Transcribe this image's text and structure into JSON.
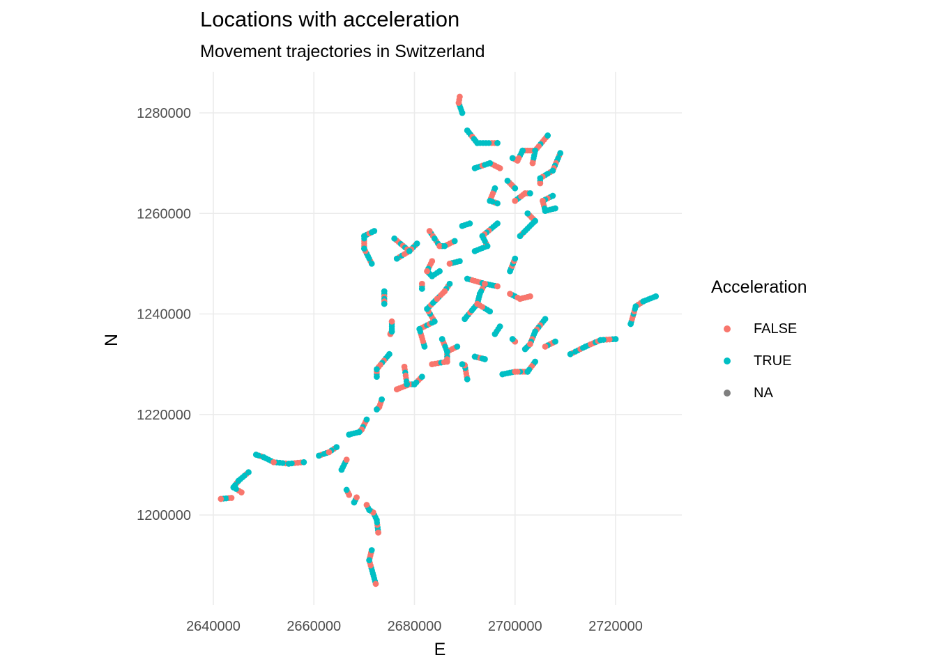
{
  "chart_data": {
    "type": "scatter",
    "title": "Locations with acceleration",
    "subtitle": "Movement trajectories in Switzerland",
    "xlabel": "E",
    "ylabel": "N",
    "xlim": [
      2638500,
      2732500
    ],
    "ylim": [
      1184500,
      1287000
    ],
    "x_ticks": [
      2640000,
      2660000,
      2680000,
      2700000,
      2720000
    ],
    "x_tick_labels": [
      "2640000",
      "2660000",
      "2680000",
      "2700000",
      "2720000"
    ],
    "y_ticks": [
      1200000,
      1220000,
      1240000,
      1260000,
      1280000
    ],
    "y_tick_labels": [
      "1200000",
      "1220000",
      "1240000",
      "1260000",
      "1280000"
    ],
    "grid": true,
    "legend": {
      "title": "Acceleration",
      "position": "right",
      "entries": [
        {
          "label": "FALSE",
          "color": "#f8766d"
        },
        {
          "label": "TRUE",
          "color": "#00bfc4"
        },
        {
          "label": "NA",
          "color": "#7f7f7f"
        }
      ]
    },
    "series": [
      {
        "name": "FALSE",
        "color": "#f8766d",
        "points": [
          [
            2641500,
            1203200
          ],
          [
            2643600,
            1203400
          ],
          [
            2645600,
            1204500
          ],
          [
            2652000,
            1210500
          ],
          [
            2663000,
            1212500
          ],
          [
            2666500,
            1211000
          ],
          [
            2667000,
            1204000
          ],
          [
            2668500,
            1203500
          ],
          [
            2670500,
            1202000
          ],
          [
            2671800,
            1200500
          ],
          [
            2672800,
            1196500
          ],
          [
            2672300,
            1186300
          ],
          [
            2669500,
            1217000
          ],
          [
            2673000,
            1221500
          ],
          [
            2676500,
            1225000
          ],
          [
            2678500,
            1225800
          ],
          [
            2675500,
            1238500
          ],
          [
            2675200,
            1236000
          ],
          [
            2683500,
            1250500
          ],
          [
            2682500,
            1248500
          ],
          [
            2681500,
            1246000
          ],
          [
            2684500,
            1243000
          ],
          [
            2686000,
            1244500
          ],
          [
            2685000,
            1253500
          ],
          [
            2683000,
            1256500
          ],
          [
            2687000,
            1250000
          ],
          [
            2689000,
            1283200
          ],
          [
            2688800,
            1282000
          ],
          [
            2692500,
            1242000
          ],
          [
            2694000,
            1246000
          ],
          [
            2696500,
            1245500
          ],
          [
            2699000,
            1244000
          ],
          [
            2701000,
            1243000
          ],
          [
            2703000,
            1243500
          ],
          [
            2700000,
            1234500
          ],
          [
            2703000,
            1234000
          ],
          [
            2706000,
            1233500
          ],
          [
            2697000,
            1269000
          ],
          [
            2700500,
            1270500
          ],
          [
            2702000,
            1264000
          ],
          [
            2705500,
            1262500
          ],
          [
            2703500,
            1270000
          ],
          [
            2705000,
            1266000
          ],
          [
            2700000,
            1262500
          ],
          [
            2690000,
            1229800
          ],
          [
            2683500,
            1230000
          ],
          [
            2686500,
            1230500
          ],
          [
            2678000,
            1229500
          ],
          [
            2700000,
            1228500
          ]
        ]
      },
      {
        "name": "TRUE",
        "color": "#00bfc4",
        "points": [
          [
            2644000,
            1205500
          ],
          [
            2645000,
            1206800
          ],
          [
            2647000,
            1208500
          ],
          [
            2648500,
            1212000
          ],
          [
            2650000,
            1211500
          ],
          [
            2655000,
            1210200
          ],
          [
            2658000,
            1210500
          ],
          [
            2661000,
            1211800
          ],
          [
            2664500,
            1213500
          ],
          [
            2667000,
            1216000
          ],
          [
            2669000,
            1216500
          ],
          [
            2670500,
            1219000
          ],
          [
            2672500,
            1221000
          ],
          [
            2673500,
            1223000
          ],
          [
            2672500,
            1229000
          ],
          [
            2672500,
            1227500
          ],
          [
            2675000,
            1232000
          ],
          [
            2675500,
            1236500
          ],
          [
            2674000,
            1242000
          ],
          [
            2674000,
            1244500
          ],
          [
            2671500,
            1250000
          ],
          [
            2670000,
            1253000
          ],
          [
            2672000,
            1256500
          ],
          [
            2670000,
            1255500
          ],
          [
            2676000,
            1255000
          ],
          [
            2676500,
            1251000
          ],
          [
            2679000,
            1252500
          ],
          [
            2665500,
            1209000
          ],
          [
            2666500,
            1205000
          ],
          [
            2668000,
            1202500
          ],
          [
            2671000,
            1201000
          ],
          [
            2672500,
            1199000
          ],
          [
            2671500,
            1193000
          ],
          [
            2671000,
            1191000
          ],
          [
            2678500,
            1226000
          ],
          [
            2680000,
            1226000
          ],
          [
            2681500,
            1227500
          ],
          [
            2681000,
            1237000
          ],
          [
            2682000,
            1233500
          ],
          [
            2682500,
            1241000
          ],
          [
            2684000,
            1238500
          ],
          [
            2685500,
            1235000
          ],
          [
            2686500,
            1232500
          ],
          [
            2688500,
            1233500
          ],
          [
            2689500,
            1230000
          ],
          [
            2690500,
            1227000
          ],
          [
            2685000,
            1248500
          ],
          [
            2687000,
            1246000
          ],
          [
            2689000,
            1250500
          ],
          [
            2690500,
            1247000
          ],
          [
            2692000,
            1252500
          ],
          [
            2693500,
            1255500
          ],
          [
            2689500,
            1257500
          ],
          [
            2691000,
            1258000
          ],
          [
            2688000,
            1254500
          ],
          [
            2693000,
            1244000
          ],
          [
            2695000,
            1240500
          ],
          [
            2697000,
            1237500
          ],
          [
            2699500,
            1235000
          ],
          [
            2702000,
            1233000
          ],
          [
            2704000,
            1236500
          ],
          [
            2706000,
            1239000
          ],
          [
            2708000,
            1234500
          ],
          [
            2711000,
            1232000
          ],
          [
            2714000,
            1233500
          ],
          [
            2717000,
            1234800
          ],
          [
            2720000,
            1235000
          ],
          [
            2723000,
            1238000
          ],
          [
            2724000,
            1241500
          ],
          [
            2725500,
            1242500
          ],
          [
            2728000,
            1243500
          ],
          [
            2697500,
            1228000
          ],
          [
            2702500,
            1228500
          ],
          [
            2704000,
            1230500
          ],
          [
            2696000,
            1236000
          ],
          [
            2694000,
            1231000
          ],
          [
            2692000,
            1231500
          ],
          [
            2690000,
            1239000
          ],
          [
            2694500,
            1253500
          ],
          [
            2696500,
            1258000
          ],
          [
            2695000,
            1262500
          ],
          [
            2696000,
            1265000
          ],
          [
            2698500,
            1266500
          ],
          [
            2700000,
            1265000
          ],
          [
            2702500,
            1260000
          ],
          [
            2704000,
            1258500
          ],
          [
            2706000,
            1260500
          ],
          [
            2707500,
            1263500
          ],
          [
            2708000,
            1261000
          ],
          [
            2701000,
            1255500
          ],
          [
            2700000,
            1251000
          ],
          [
            2699000,
            1248500
          ],
          [
            2704000,
            1272500
          ],
          [
            2706500,
            1275500
          ],
          [
            2709000,
            1272000
          ],
          [
            2707500,
            1268500
          ],
          [
            2705000,
            1267000
          ],
          [
            2696500,
            1262000
          ],
          [
            2695000,
            1270000
          ],
          [
            2692000,
            1269000
          ],
          [
            2692500,
            1274000
          ],
          [
            2690500,
            1276500
          ],
          [
            2689500,
            1280000
          ],
          [
            2686000,
            1253500
          ],
          [
            2684000,
            1255000
          ],
          [
            2680500,
            1254000
          ],
          [
            2681500,
            1245000
          ],
          [
            2683500,
            1247500
          ],
          [
            2703000,
            1264000
          ],
          [
            2701500,
            1272500
          ],
          [
            2699500,
            1271000
          ],
          [
            2696500,
            1274000
          ]
        ]
      }
    ]
  }
}
